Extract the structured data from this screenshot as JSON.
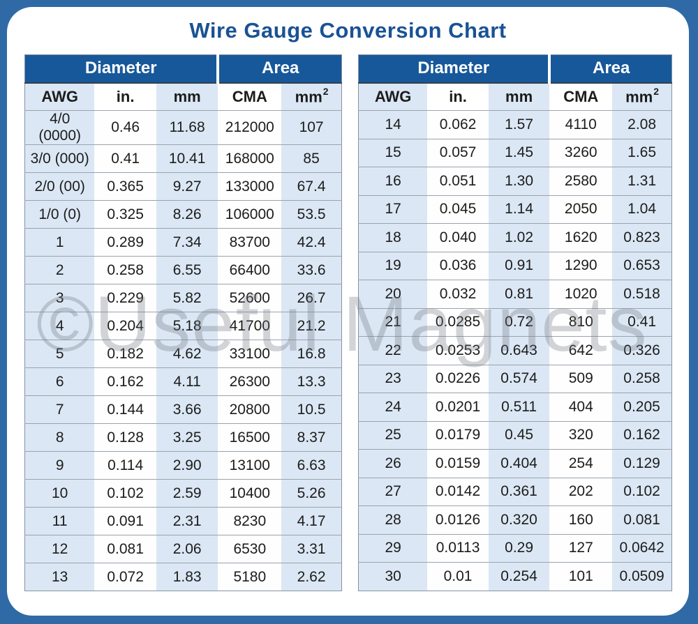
{
  "page": {
    "title": "Wire Gauge Conversion Chart",
    "watermark": "©Useful Magnets"
  },
  "colors": {
    "frame_blue": "#2f6aa7",
    "header_blue": "#17589a",
    "stripe_blue": "#dbe7f4",
    "title_blue": "#1a5294"
  },
  "tables": [
    {
      "name": "awg-heavy-gauges",
      "group_headers": [
        {
          "label": "Diameter",
          "span": 3
        },
        {
          "label": "Area",
          "span": 2
        }
      ],
      "columns": [
        "AWG",
        "in.",
        "mm",
        "CMA",
        "mm²"
      ],
      "rows": [
        [
          "4/0 (0000)",
          "0.46",
          "11.68",
          "212000",
          "107"
        ],
        [
          "3/0 (000)",
          "0.41",
          "10.41",
          "168000",
          "85"
        ],
        [
          "2/0 (00)",
          "0.365",
          "9.27",
          "133000",
          "67.4"
        ],
        [
          "1/0 (0)",
          "0.325",
          "8.26",
          "106000",
          "53.5"
        ],
        [
          "1",
          "0.289",
          "7.34",
          "83700",
          "42.4"
        ],
        [
          "2",
          "0.258",
          "6.55",
          "66400",
          "33.6"
        ],
        [
          "3",
          "0.229",
          "5.82",
          "52600",
          "26.7"
        ],
        [
          "4",
          "0.204",
          "5.18",
          "41700",
          "21.2"
        ],
        [
          "5",
          "0.182",
          "4.62",
          "33100",
          "16.8"
        ],
        [
          "6",
          "0.162",
          "4.11",
          "26300",
          "13.3"
        ],
        [
          "7",
          "0.144",
          "3.66",
          "20800",
          "10.5"
        ],
        [
          "8",
          "0.128",
          "3.25",
          "16500",
          "8.37"
        ],
        [
          "9",
          "0.114",
          "2.90",
          "13100",
          "6.63"
        ],
        [
          "10",
          "0.102",
          "2.59",
          "10400",
          "5.26"
        ],
        [
          "11",
          "0.091",
          "2.31",
          "8230",
          "4.17"
        ],
        [
          "12",
          "0.081",
          "2.06",
          "6530",
          "3.31"
        ],
        [
          "13",
          "0.072",
          "1.83",
          "5180",
          "2.62"
        ]
      ]
    },
    {
      "name": "awg-fine-gauges",
      "group_headers": [
        {
          "label": "Diameter",
          "span": 3
        },
        {
          "label": "Area",
          "span": 2
        }
      ],
      "columns": [
        "AWG",
        "in.",
        "mm",
        "CMA",
        "mm²"
      ],
      "rows": [
        [
          "14",
          "0.062",
          "1.57",
          "4110",
          "2.08"
        ],
        [
          "15",
          "0.057",
          "1.45",
          "3260",
          "1.65"
        ],
        [
          "16",
          "0.051",
          "1.30",
          "2580",
          "1.31"
        ],
        [
          "17",
          "0.045",
          "1.14",
          "2050",
          "1.04"
        ],
        [
          "18",
          "0.040",
          "1.02",
          "1620",
          "0.823"
        ],
        [
          "19",
          "0.036",
          "0.91",
          "1290",
          "0.653"
        ],
        [
          "20",
          "0.032",
          "0.81",
          "1020",
          "0.518"
        ],
        [
          "21",
          "0.0285",
          "0.72",
          "810",
          "0.41"
        ],
        [
          "22",
          "0.0253",
          "0.643",
          "642",
          "0.326"
        ],
        [
          "23",
          "0.0226",
          "0.574",
          "509",
          "0.258"
        ],
        [
          "24",
          "0.0201",
          "0.511",
          "404",
          "0.205"
        ],
        [
          "25",
          "0.0179",
          "0.45",
          "320",
          "0.162"
        ],
        [
          "26",
          "0.0159",
          "0.404",
          "254",
          "0.129"
        ],
        [
          "27",
          "0.0142",
          "0.361",
          "202",
          "0.102"
        ],
        [
          "28",
          "0.0126",
          "0.320",
          "160",
          "0.081"
        ],
        [
          "29",
          "0.0113",
          "0.29",
          "127",
          "0.0642"
        ],
        [
          "30",
          "0.01",
          "0.254",
          "101",
          "0.0509"
        ]
      ]
    }
  ]
}
